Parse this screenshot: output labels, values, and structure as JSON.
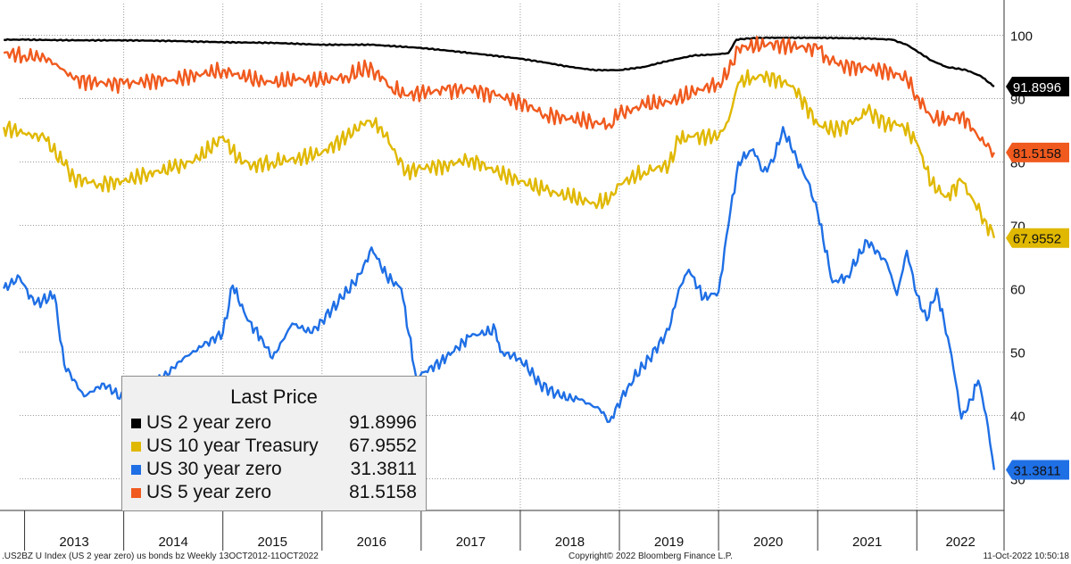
{
  "chart_data": {
    "type": "line",
    "x_axis": {
      "ticks": [
        "2013",
        "2014",
        "2015",
        "2016",
        "2017",
        "2018",
        "2019",
        "2020",
        "2021",
        "2022"
      ],
      "range": [
        "2012-10-13",
        "2022-10-11"
      ]
    },
    "y_axis": {
      "ticks": [
        30,
        40,
        50,
        60,
        70,
        80,
        90,
        100
      ],
      "range": [
        25,
        105
      ],
      "side": "right"
    },
    "grid": true,
    "legend": {
      "title": "Last Price",
      "placement": "bottom-left",
      "entries": [
        {
          "name": "US 2 year zero",
          "value": "91.8996",
          "color": "#000000"
        },
        {
          "name": "US 10 year Treasury",
          "value": "67.9552",
          "color": "#e0b800"
        },
        {
          "name": "US 30 year zero",
          "value": "31.3811",
          "color": "#1f6fe5"
        },
        {
          "name": "US 5 year zero",
          "value": "81.5158",
          "color": "#f05a1e"
        }
      ]
    },
    "series": [
      {
        "name": "US 2 year zero",
        "color": "#000000",
        "last_label": "91.8996",
        "points": [
          [
            2012.79,
            99.3
          ],
          [
            2013.0,
            99.3
          ],
          [
            2013.5,
            99.2
          ],
          [
            2014.0,
            99.2
          ],
          [
            2014.5,
            99.1
          ],
          [
            2015.0,
            98.9
          ],
          [
            2015.5,
            98.8
          ],
          [
            2016.0,
            98.5
          ],
          [
            2016.5,
            98.5
          ],
          [
            2017.0,
            98.0
          ],
          [
            2017.5,
            97.2
          ],
          [
            2018.0,
            96.3
          ],
          [
            2018.25,
            95.7
          ],
          [
            2018.5,
            95.0
          ],
          [
            2018.75,
            94.5
          ],
          [
            2019.0,
            94.5
          ],
          [
            2019.25,
            95.0
          ],
          [
            2019.5,
            96.0
          ],
          [
            2019.75,
            96.8
          ],
          [
            2020.0,
            97.0
          ],
          [
            2020.1,
            97.2
          ],
          [
            2020.18,
            99.3
          ],
          [
            2020.3,
            99.5
          ],
          [
            2020.5,
            99.6
          ],
          [
            2021.0,
            99.6
          ],
          [
            2021.5,
            99.5
          ],
          [
            2021.75,
            99.3
          ],
          [
            2021.9,
            98.5
          ],
          [
            2022.0,
            97.5
          ],
          [
            2022.15,
            96.0
          ],
          [
            2022.3,
            95.0
          ],
          [
            2022.5,
            94.5
          ],
          [
            2022.65,
            93.5
          ],
          [
            2022.78,
            91.9
          ]
        ]
      },
      {
        "name": "US 5 year zero",
        "color": "#f05a1e",
        "last_label": "81.5158",
        "points": [
          [
            2012.79,
            97.2
          ],
          [
            2013.0,
            96.8
          ],
          [
            2013.2,
            96.5
          ],
          [
            2013.4,
            94.5
          ],
          [
            2013.5,
            93.0
          ],
          [
            2013.75,
            92.5
          ],
          [
            2014.0,
            92.3
          ],
          [
            2014.25,
            92.8
          ],
          [
            2014.5,
            93.0
          ],
          [
            2014.75,
            93.8
          ],
          [
            2015.0,
            94.5
          ],
          [
            2015.25,
            93.2
          ],
          [
            2015.5,
            92.5
          ],
          [
            2015.75,
            93.0
          ],
          [
            2016.0,
            92.8
          ],
          [
            2016.25,
            93.5
          ],
          [
            2016.45,
            94.8
          ],
          [
            2016.55,
            94.2
          ],
          [
            2016.7,
            91.8
          ],
          [
            2016.85,
            90.5
          ],
          [
            2017.0,
            91.0
          ],
          [
            2017.25,
            91.3
          ],
          [
            2017.5,
            91.5
          ],
          [
            2017.75,
            90.5
          ],
          [
            2018.0,
            89.5
          ],
          [
            2018.25,
            87.5
          ],
          [
            2018.5,
            86.8
          ],
          [
            2018.75,
            86.3
          ],
          [
            2018.9,
            86.0
          ],
          [
            2019.0,
            87.5
          ],
          [
            2019.25,
            89.0
          ],
          [
            2019.5,
            89.5
          ],
          [
            2019.75,
            91.0
          ],
          [
            2020.0,
            92.5
          ],
          [
            2020.1,
            94.0
          ],
          [
            2020.2,
            98.0
          ],
          [
            2020.5,
            98.6
          ],
          [
            2020.75,
            98.3
          ],
          [
            2021.0,
            97.8
          ],
          [
            2021.1,
            96.5
          ],
          [
            2021.25,
            95.2
          ],
          [
            2021.5,
            94.8
          ],
          [
            2021.75,
            94.2
          ],
          [
            2021.9,
            93.0
          ],
          [
            2022.0,
            90.5
          ],
          [
            2022.15,
            87.0
          ],
          [
            2022.3,
            86.5
          ],
          [
            2022.45,
            87.5
          ],
          [
            2022.6,
            84.5
          ],
          [
            2022.7,
            82.5
          ],
          [
            2022.78,
            81.5
          ]
        ]
      },
      {
        "name": "US 10 year Treasury",
        "color": "#e0b800",
        "last_label": "67.9552",
        "points": [
          [
            2012.79,
            85.5
          ],
          [
            2013.0,
            84.5
          ],
          [
            2013.2,
            83.8
          ],
          [
            2013.4,
            79.5
          ],
          [
            2013.5,
            77.5
          ],
          [
            2013.75,
            76.5
          ],
          [
            2014.0,
            77.0
          ],
          [
            2014.25,
            78.2
          ],
          [
            2014.5,
            79.0
          ],
          [
            2014.75,
            80.5
          ],
          [
            2015.0,
            84.0
          ],
          [
            2015.15,
            80.5
          ],
          [
            2015.3,
            79.5
          ],
          [
            2015.5,
            80.0
          ],
          [
            2015.75,
            80.5
          ],
          [
            2016.0,
            81.5
          ],
          [
            2016.25,
            84.0
          ],
          [
            2016.45,
            86.5
          ],
          [
            2016.6,
            85.5
          ],
          [
            2016.75,
            81.0
          ],
          [
            2016.85,
            78.5
          ],
          [
            2017.0,
            79.0
          ],
          [
            2017.25,
            79.5
          ],
          [
            2017.5,
            80.5
          ],
          [
            2017.75,
            78.5
          ],
          [
            2018.0,
            77.0
          ],
          [
            2018.25,
            75.5
          ],
          [
            2018.5,
            74.5
          ],
          [
            2018.75,
            73.5
          ],
          [
            2018.9,
            74.0
          ],
          [
            2019.0,
            76.5
          ],
          [
            2019.25,
            78.5
          ],
          [
            2019.5,
            79.5
          ],
          [
            2019.6,
            83.5
          ],
          [
            2019.75,
            84.0
          ],
          [
            2020.0,
            84.0
          ],
          [
            2020.1,
            86.5
          ],
          [
            2020.2,
            92.5
          ],
          [
            2020.35,
            93.5
          ],
          [
            2020.5,
            93.5
          ],
          [
            2020.75,
            92.0
          ],
          [
            2021.0,
            86.0
          ],
          [
            2021.15,
            85.0
          ],
          [
            2021.35,
            86.0
          ],
          [
            2021.5,
            88.0
          ],
          [
            2021.7,
            86.0
          ],
          [
            2021.85,
            86.0
          ],
          [
            2022.0,
            83.0
          ],
          [
            2022.15,
            76.5
          ],
          [
            2022.3,
            74.5
          ],
          [
            2022.45,
            77.0
          ],
          [
            2022.55,
            74.5
          ],
          [
            2022.68,
            71.0
          ],
          [
            2022.78,
            68.0
          ]
        ]
      },
      {
        "name": "US 30 year zero",
        "color": "#1f6fe5",
        "last_label": "31.3811",
        "points": [
          [
            2012.79,
            60.0
          ],
          [
            2012.95,
            61.8
          ],
          [
            2013.1,
            57.5
          ],
          [
            2013.3,
            59.0
          ],
          [
            2013.4,
            48.0
          ],
          [
            2013.6,
            43.0
          ],
          [
            2013.8,
            45.0
          ],
          [
            2014.0,
            42.5
          ],
          [
            2014.2,
            44.0
          ],
          [
            2014.4,
            46.0
          ],
          [
            2014.6,
            49.0
          ],
          [
            2014.8,
            51.0
          ],
          [
            2015.0,
            53.0
          ],
          [
            2015.1,
            60.5
          ],
          [
            2015.25,
            55.0
          ],
          [
            2015.4,
            52.0
          ],
          [
            2015.5,
            49.0
          ],
          [
            2015.7,
            54.5
          ],
          [
            2015.9,
            53.0
          ],
          [
            2016.0,
            55.0
          ],
          [
            2016.2,
            58.5
          ],
          [
            2016.4,
            62.5
          ],
          [
            2016.5,
            66.5
          ],
          [
            2016.65,
            62.0
          ],
          [
            2016.8,
            60.0
          ],
          [
            2016.95,
            46.0
          ],
          [
            2017.2,
            48.5
          ],
          [
            2017.5,
            52.5
          ],
          [
            2017.75,
            53.5
          ],
          [
            2017.8,
            50.0
          ],
          [
            2018.0,
            49.0
          ],
          [
            2018.2,
            45.0
          ],
          [
            2018.4,
            43.0
          ],
          [
            2018.6,
            42.5
          ],
          [
            2018.8,
            41.0
          ],
          [
            2018.9,
            39.0
          ],
          [
            2019.1,
            45.0
          ],
          [
            2019.3,
            49.0
          ],
          [
            2019.5,
            53.5
          ],
          [
            2019.6,
            60.0
          ],
          [
            2019.7,
            63.0
          ],
          [
            2019.85,
            58.5
          ],
          [
            2020.0,
            59.5
          ],
          [
            2020.1,
            70.0
          ],
          [
            2020.2,
            80.0
          ],
          [
            2020.35,
            82.0
          ],
          [
            2020.45,
            78.5
          ],
          [
            2020.55,
            80.0
          ],
          [
            2020.65,
            85.5
          ],
          [
            2020.75,
            81.5
          ],
          [
            2020.9,
            77.0
          ],
          [
            2021.0,
            72.0
          ],
          [
            2021.15,
            61.0
          ],
          [
            2021.3,
            62.0
          ],
          [
            2021.5,
            67.5
          ],
          [
            2021.7,
            64.0
          ],
          [
            2021.8,
            59.0
          ],
          [
            2021.9,
            66.0
          ],
          [
            2022.0,
            59.0
          ],
          [
            2022.1,
            55.0
          ],
          [
            2022.2,
            60.0
          ],
          [
            2022.35,
            49.5
          ],
          [
            2022.45,
            39.5
          ],
          [
            2022.55,
            42.5
          ],
          [
            2022.62,
            45.5
          ],
          [
            2022.7,
            40.0
          ],
          [
            2022.78,
            31.4
          ]
        ]
      }
    ]
  },
  "footer": {
    "left": ".US2BZ U Index (US 2 year zero) us bonds bz  Weekly 13OCT2012-11OCT2022",
    "center": "Copyright© 2022 Bloomberg Finance L.P.",
    "right": "11-Oct-2022 10:50:18"
  }
}
